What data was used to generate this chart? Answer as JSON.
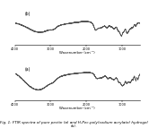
{
  "title": "Fig. 1: FTIR spectra of pure pectin (a) and H-Pec-poly(sodium acrylate) hydrogel (b).",
  "xlabel": "Wavenumber (cm⁻¹)",
  "background_color": "#ffffff",
  "line_color": "#555555",
  "label_a": "(a)",
  "label_b": "(b)",
  "title_fontsize": 3.0,
  "axis_fontsize": 2.8,
  "tick_fontsize": 2.5
}
